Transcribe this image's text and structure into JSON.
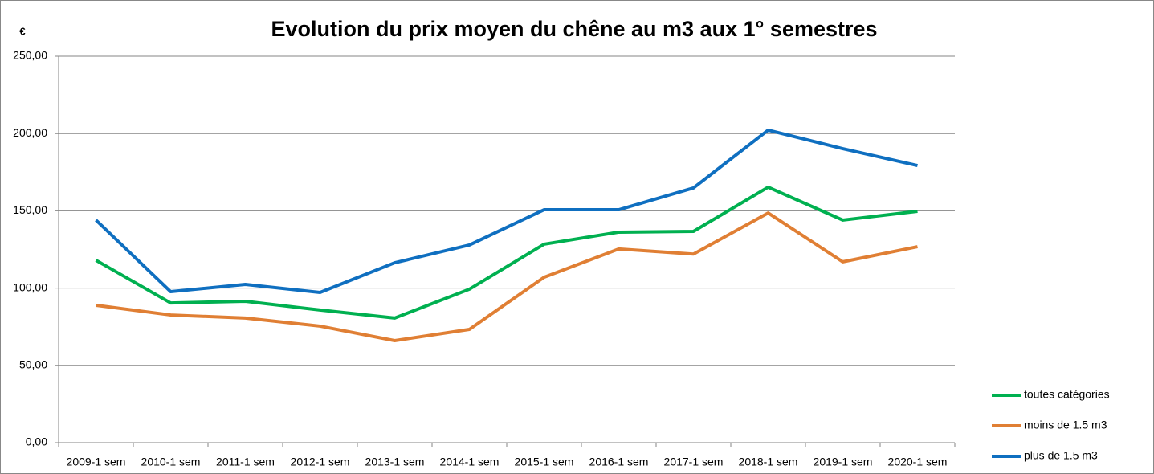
{
  "chart_data": {
    "type": "line",
    "title": "Evolution du prix moyen du chêne au m3 aux 1° semestres",
    "y_label": "€",
    "categories": [
      "2009-1 sem",
      "2010-1 sem",
      "2011-1 sem",
      "2012-1 sem",
      "2013-1 sem",
      "2014-1 sem",
      "2015-1 sem",
      "2016-1 sem",
      "2017-1 sem",
      "2018-1 sem",
      "2019-1 sem",
      "2020-1 sem"
    ],
    "series": [
      {
        "name": "toutes catégories",
        "color": "#00b050",
        "values": [
          118,
          90.4,
          91.5,
          85.8,
          80.6,
          99.3,
          128.4,
          136.2,
          136.7,
          165.3,
          144,
          149.7
        ]
      },
      {
        "name": "moins de 1.5 m3",
        "color": "#e07f34",
        "values": [
          88.9,
          82.6,
          80.6,
          75.4,
          66,
          73.3,
          107,
          125.3,
          122,
          148.6,
          117,
          126.8
        ]
      },
      {
        "name": "plus de 1.5 m3",
        "color": "#0f6fc0",
        "values": [
          144,
          97.7,
          102.4,
          97.2,
          116.4,
          127.9,
          150.7,
          150.7,
          164.8,
          202.2,
          190.2,
          179.3
        ]
      }
    ],
    "ylim": [
      0,
      250
    ],
    "yticks": [
      {
        "value": 0,
        "label": "0,00"
      },
      {
        "value": 50,
        "label": "50,00"
      },
      {
        "value": 100,
        "label": "100,00"
      },
      {
        "value": 150,
        "label": "150,00"
      },
      {
        "value": 200,
        "label": "200,00"
      },
      {
        "value": 250,
        "label": "250,00"
      }
    ],
    "grid": true,
    "legend": "right"
  }
}
